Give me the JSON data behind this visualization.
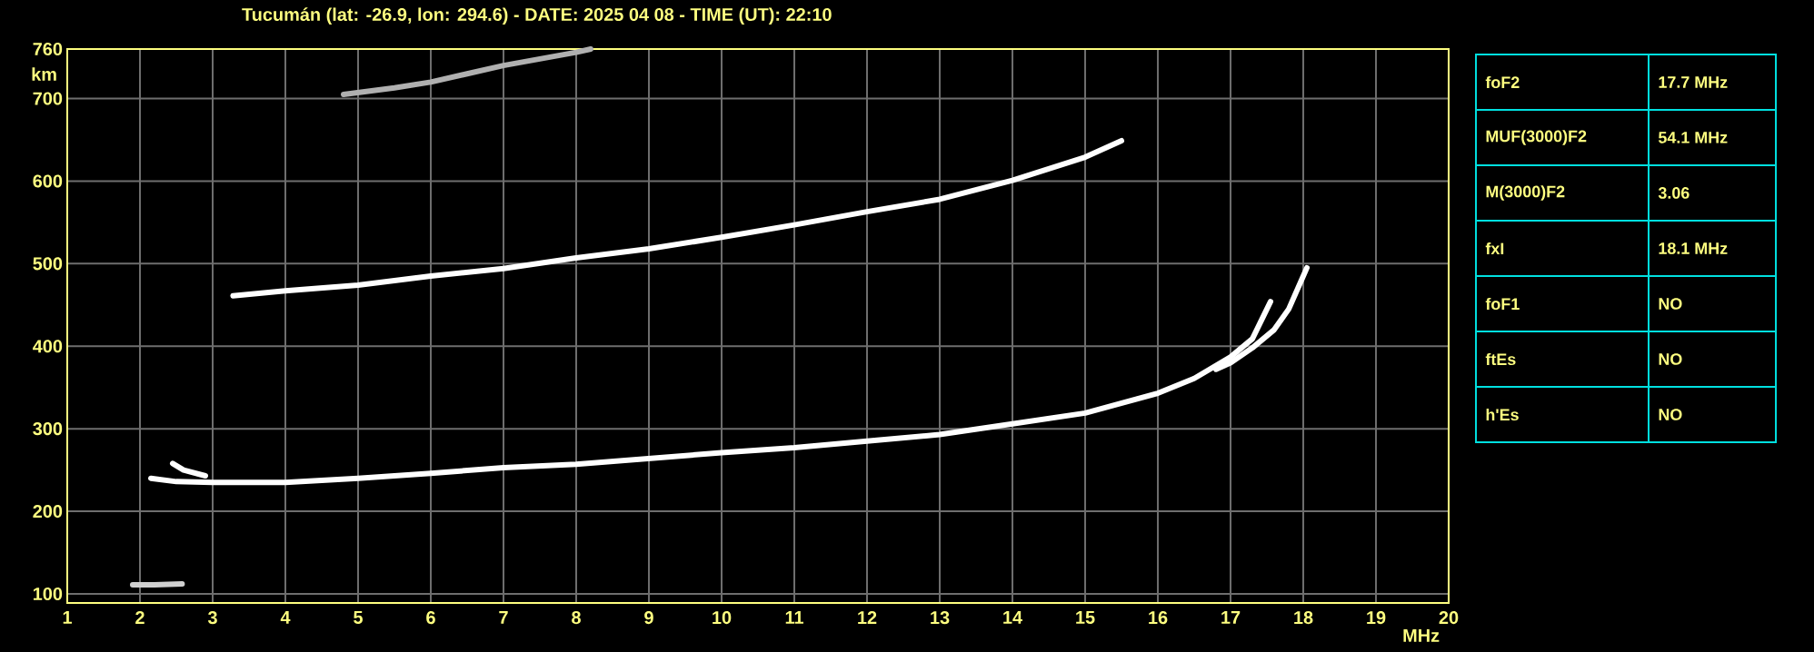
{
  "chart_data": [
    {
      "type": "line",
      "title": "Tucumán (lat: -26.9, lon: 294.6) - DATE: 2025 04 08 - TIME (UT): 22:10",
      "xlabel": "MHz",
      "ylabel": "km",
      "xlim": [
        1,
        20
      ],
      "ylim": [
        89,
        760
      ],
      "xticks": [
        1,
        2,
        3,
        4,
        5,
        6,
        7,
        8,
        9,
        10,
        11,
        12,
        13,
        14,
        15,
        16,
        17,
        18,
        19,
        20
      ],
      "yticks": [
        100,
        200,
        300,
        400,
        500,
        600,
        700,
        760
      ],
      "grid": true,
      "series": [
        {
          "color": "#ffffff",
          "x": [
            2.15,
            2.5,
            3,
            4,
            5,
            6,
            7,
            8,
            9,
            10,
            11,
            12,
            13,
            14,
            15,
            16,
            16.5,
            17,
            17.3,
            17.55
          ],
          "values": [
            240,
            236,
            235,
            235,
            240,
            246,
            253,
            257,
            264,
            271,
            277,
            285,
            293,
            306,
            319,
            343,
            361,
            387,
            409,
            454
          ]
        },
        {
          "color": "#ffffff",
          "x": [
            16.8,
            17.0,
            17.3,
            17.6,
            17.8,
            18.0,
            18.05
          ],
          "values": [
            372,
            380,
            398,
            420,
            445,
            485,
            495
          ]
        },
        {
          "color": "#ffffff",
          "x": [
            2.45,
            2.6,
            2.9
          ],
          "values": [
            258,
            250,
            243
          ]
        },
        {
          "color": "#ffffff",
          "x": [
            3.28,
            4,
            5,
            6,
            7,
            8,
            9,
            10,
            11,
            12,
            13,
            14,
            15,
            15.5
          ],
          "values": [
            461,
            467,
            474,
            485,
            494,
            507,
            518,
            532,
            547,
            563,
            578,
            601,
            629,
            649
          ]
        },
        {
          "color": "#b0b0b0",
          "x": [
            4.8,
            5.5,
            6,
            6.5,
            7,
            7.5,
            8,
            8.2
          ],
          "values": [
            705,
            713,
            720,
            730,
            740,
            748,
            756,
            760
          ]
        },
        {
          "color": "#d0d0d0",
          "x": [
            1.9,
            2.2,
            2.58
          ],
          "values": [
            111,
            111,
            112
          ]
        }
      ]
    },
    {
      "type": "other",
      "annotations": [
        "foF2",
        "17.7 MHz",
        "MUF(3000)F2",
        "54.1 MHz",
        "M(3000)F2",
        "3.06",
        "fxI",
        "18.1 MHz",
        "foF1",
        "NO",
        "ftEs",
        "NO",
        "h'Es",
        "NO"
      ]
    }
  ]
}
